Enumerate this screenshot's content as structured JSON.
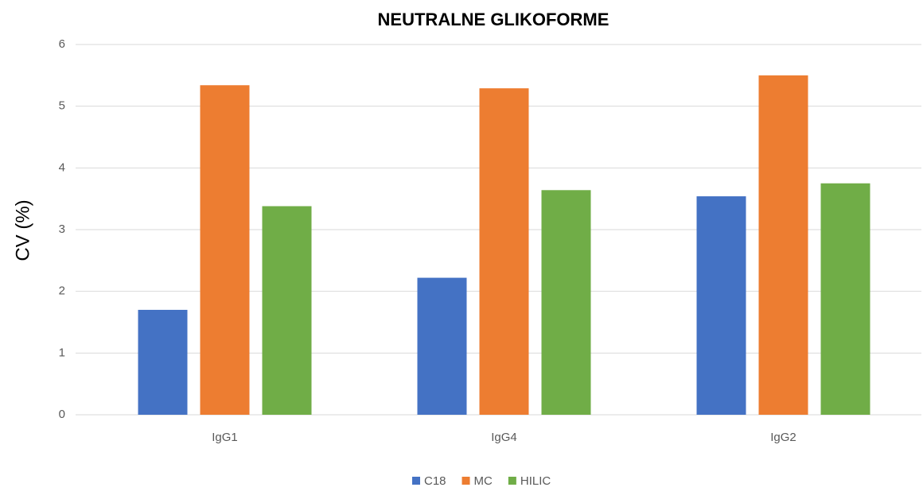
{
  "chart_data": {
    "type": "bar",
    "title": "NEUTRALNE GLIKOFORME",
    "y_label": "CV (%)",
    "categories": [
      "IgG1",
      "IgG4",
      "IgG2"
    ],
    "series": [
      {
        "name": "C18",
        "color": "#4472c4",
        "values": [
          1.7,
          2.22,
          3.54
        ]
      },
      {
        "name": "MC",
        "color": "#ed7d31",
        "values": [
          5.34,
          5.29,
          5.5
        ]
      },
      {
        "name": "HILIC",
        "color": "#70ad47",
        "values": [
          3.38,
          3.64,
          3.75
        ]
      }
    ],
    "ylim": [
      0,
      6
    ],
    "yticks": [
      0,
      1,
      2,
      3,
      4,
      5,
      6
    ],
    "grid": true,
    "legend": "bottom"
  }
}
